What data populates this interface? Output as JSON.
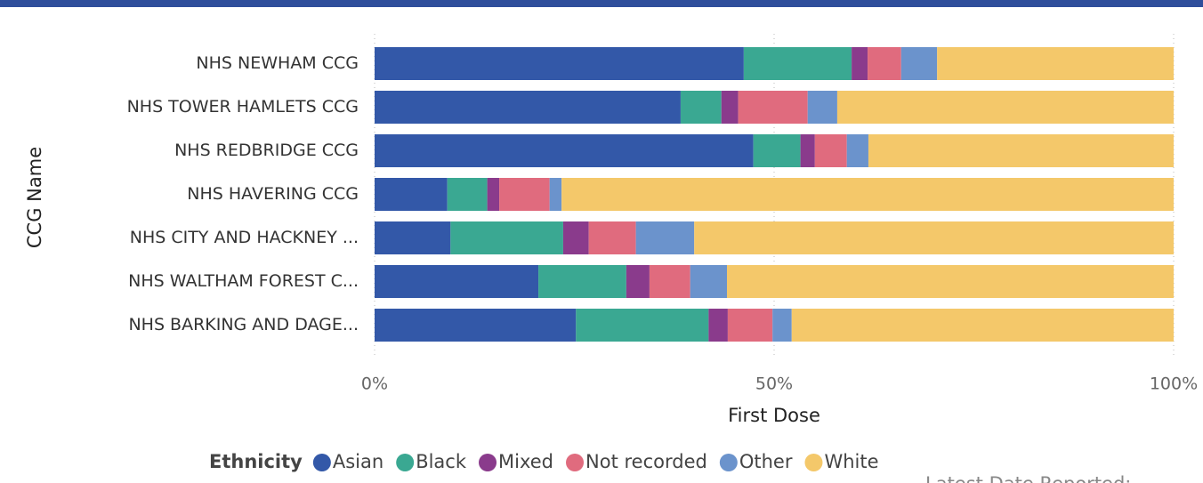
{
  "chart_data": {
    "type": "stacked_barh",
    "y_label": "CCG Name",
    "x_label": "First Dose",
    "legend_title": "Ethnicity",
    "legend_position": "bottom",
    "footnote": "Latest Date Reported:",
    "categories": [
      "NHS NEWHAM CCG",
      "NHS TOWER HAMLETS CCG",
      "NHS REDBRIDGE CCG",
      "NHS HAVERING CCG",
      "NHS CITY AND HACKNEY ...",
      "NHS WALTHAM FOREST C...",
      "NHS BARKING AND DAGE..."
    ],
    "series": [
      {
        "name": "Asian",
        "color": "#3358a8",
        "values": [
          46.2,
          38.3,
          47.4,
          9.1,
          9.5,
          20.5,
          25.2
        ]
      },
      {
        "name": "Black",
        "color": "#3aa892",
        "values": [
          13.5,
          5.1,
          5.9,
          5.0,
          14.1,
          11.0,
          16.6
        ]
      },
      {
        "name": "Mixed",
        "color": "#8a3b8c",
        "values": [
          2.0,
          2.1,
          1.8,
          1.5,
          3.2,
          2.9,
          2.4
        ]
      },
      {
        "name": "Not recorded",
        "color": "#e06b7e",
        "values": [
          4.2,
          8.7,
          4.0,
          6.3,
          5.9,
          5.1,
          5.6
        ]
      },
      {
        "name": "Other",
        "color": "#6b93cc",
        "values": [
          4.5,
          3.7,
          2.7,
          1.5,
          7.3,
          4.6,
          2.4
        ]
      },
      {
        "name": "White",
        "color": "#f4c86a",
        "values": [
          29.6,
          42.1,
          38.2,
          76.6,
          60.0,
          55.9,
          47.8
        ]
      }
    ],
    "xlim": [
      0,
      100
    ],
    "xticks": [
      {
        "value": 0,
        "label": "0%"
      },
      {
        "value": 50,
        "label": "50%"
      },
      {
        "value": 100,
        "label": "100%"
      }
    ],
    "grid": true
  }
}
